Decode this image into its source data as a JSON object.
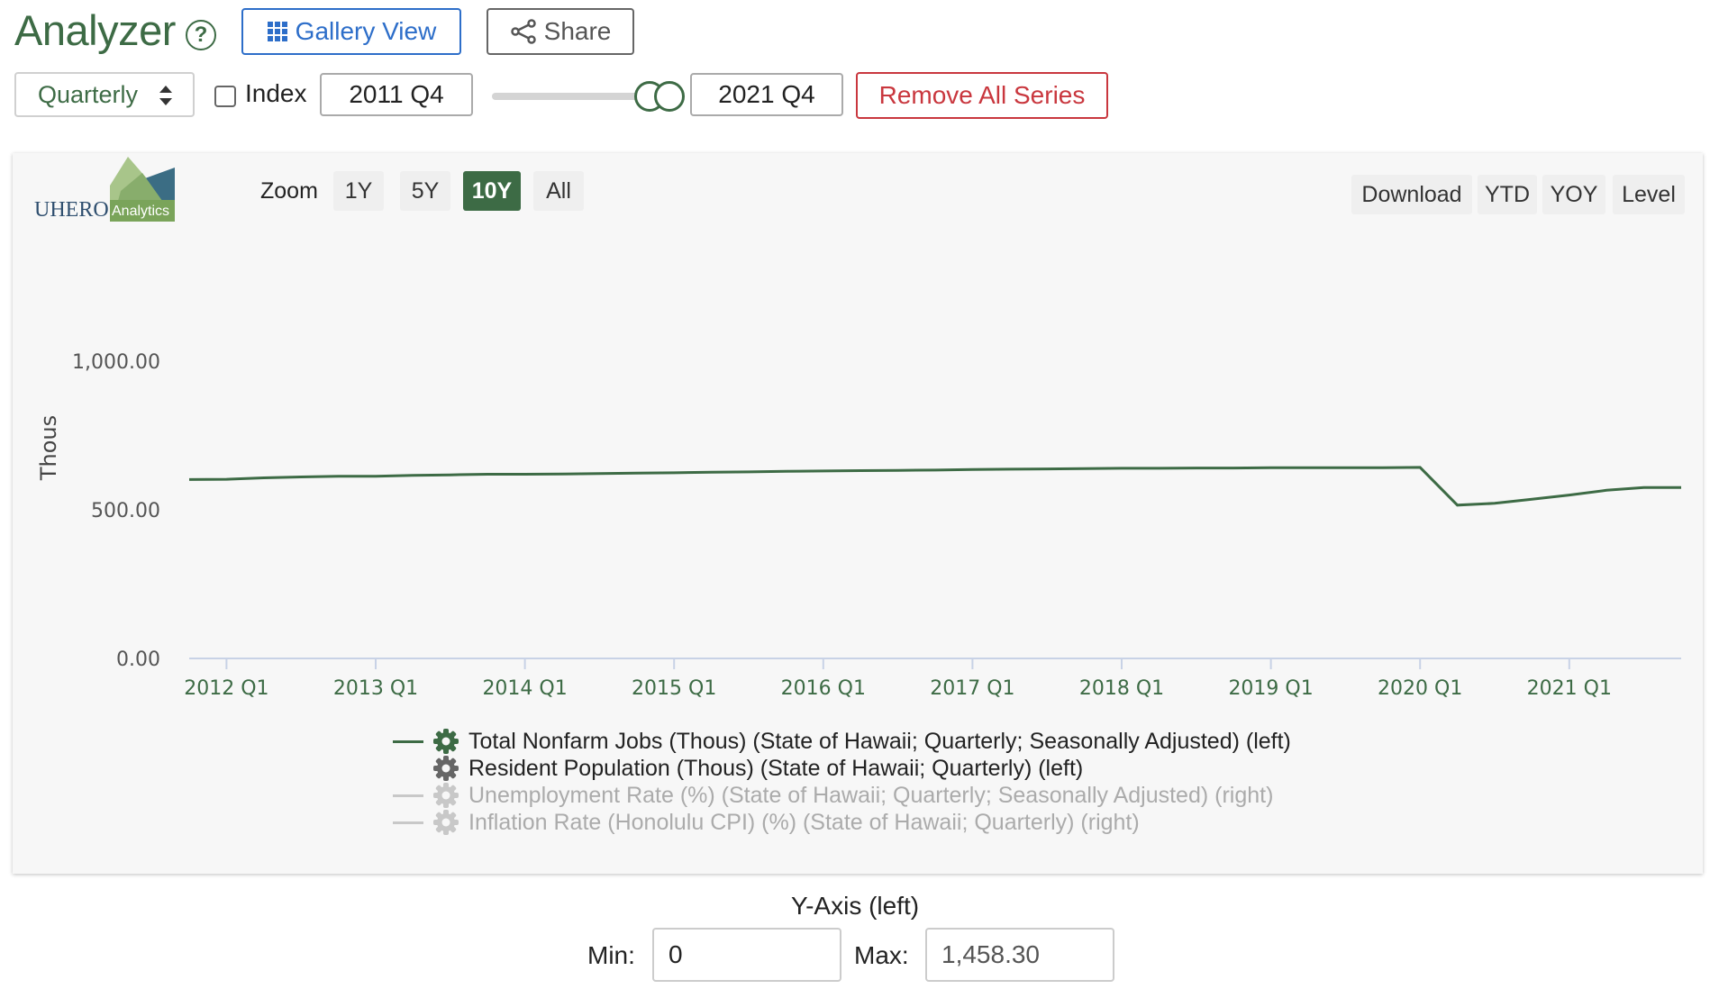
{
  "header": {
    "title": "Analyzer",
    "help_icon": "question-circle-icon",
    "gallery_label": "Gallery View",
    "share_label": "Share"
  },
  "controls": {
    "frequency": "Quarterly",
    "index_label": "Index",
    "index_checked": false,
    "start_date": "2011 Q4",
    "end_date": "2021 Q4",
    "remove_label": "Remove All Series"
  },
  "chart_panel": {
    "logo_text_main": "UHERO",
    "logo_text_sub": "Analytics",
    "zoom_label": "Zoom",
    "zoom_options": [
      "1Y",
      "5Y",
      "10Y",
      "All"
    ],
    "zoom_active": "10Y",
    "tools": [
      "Download",
      "YTD",
      "YOY",
      "Level"
    ]
  },
  "chart_data": {
    "type": "line",
    "ylabel": "Thous",
    "ylim": [
      0,
      1458.3
    ],
    "y_ticks": [
      "0.00",
      "500.00",
      "1,000.00"
    ],
    "x_tick_labels": [
      "2012 Q1",
      "2013 Q1",
      "2014 Q1",
      "2015 Q1",
      "2016 Q1",
      "2017 Q1",
      "2018 Q1",
      "2019 Q1",
      "2020 Q1",
      "2021 Q1"
    ],
    "x": [
      "2011 Q4",
      "2012 Q1",
      "2012 Q2",
      "2012 Q3",
      "2012 Q4",
      "2013 Q1",
      "2013 Q2",
      "2013 Q3",
      "2013 Q4",
      "2014 Q1",
      "2014 Q2",
      "2014 Q3",
      "2014 Q4",
      "2015 Q1",
      "2015 Q2",
      "2015 Q3",
      "2015 Q4",
      "2016 Q1",
      "2016 Q2",
      "2016 Q3",
      "2016 Q4",
      "2017 Q1",
      "2017 Q2",
      "2017 Q3",
      "2017 Q4",
      "2018 Q1",
      "2018 Q2",
      "2018 Q3",
      "2018 Q4",
      "2019 Q1",
      "2019 Q2",
      "2019 Q3",
      "2019 Q4",
      "2020 Q1",
      "2020 Q2",
      "2020 Q3",
      "2020 Q4",
      "2021 Q1",
      "2021 Q2",
      "2021 Q3",
      "2021 Q4"
    ],
    "series": [
      {
        "name": "Total Nonfarm Jobs (Thous) (State of Hawaii; Quarterly; Seasonally Adjusted) (left)",
        "color": "#3d6b45",
        "visible": true,
        "values": [
          602,
          603,
          608,
          611,
          613,
          613,
          616,
          618,
          620,
          620,
          621,
          622,
          624,
          625,
          627,
          628,
          630,
          631,
          632,
          633,
          634,
          636,
          637,
          638,
          639,
          640,
          640,
          641,
          641,
          642,
          642,
          642,
          642,
          643,
          516,
          522,
          536,
          550,
          566,
          575,
          575
        ]
      }
    ],
    "legend": [
      {
        "label": "Total Nonfarm Jobs (Thous) (State of Hawaii; Quarterly; Seasonally Adjusted) (left)",
        "state": "active",
        "color": "#3d6b45"
      },
      {
        "label": "Resident Population (Thous) (State of Hawaii; Quarterly) (left)",
        "state": "selected-hidden",
        "color": "#666666"
      },
      {
        "label": "Unemployment Rate (%) (State of Hawaii; Quarterly; Seasonally Adjusted) (right)",
        "state": "inactive",
        "color": "#b4b4b4"
      },
      {
        "label": "Inflation Rate (Honolulu CPI) (%) (State of Hawaii; Quarterly) (right)",
        "state": "inactive",
        "color": "#b4b4b4"
      }
    ]
  },
  "y_axis_controls": {
    "title": "Y-Axis (left)",
    "min_label": "Min:",
    "min_value": "0",
    "max_label": "Max:",
    "max_value": "1,458.30"
  }
}
